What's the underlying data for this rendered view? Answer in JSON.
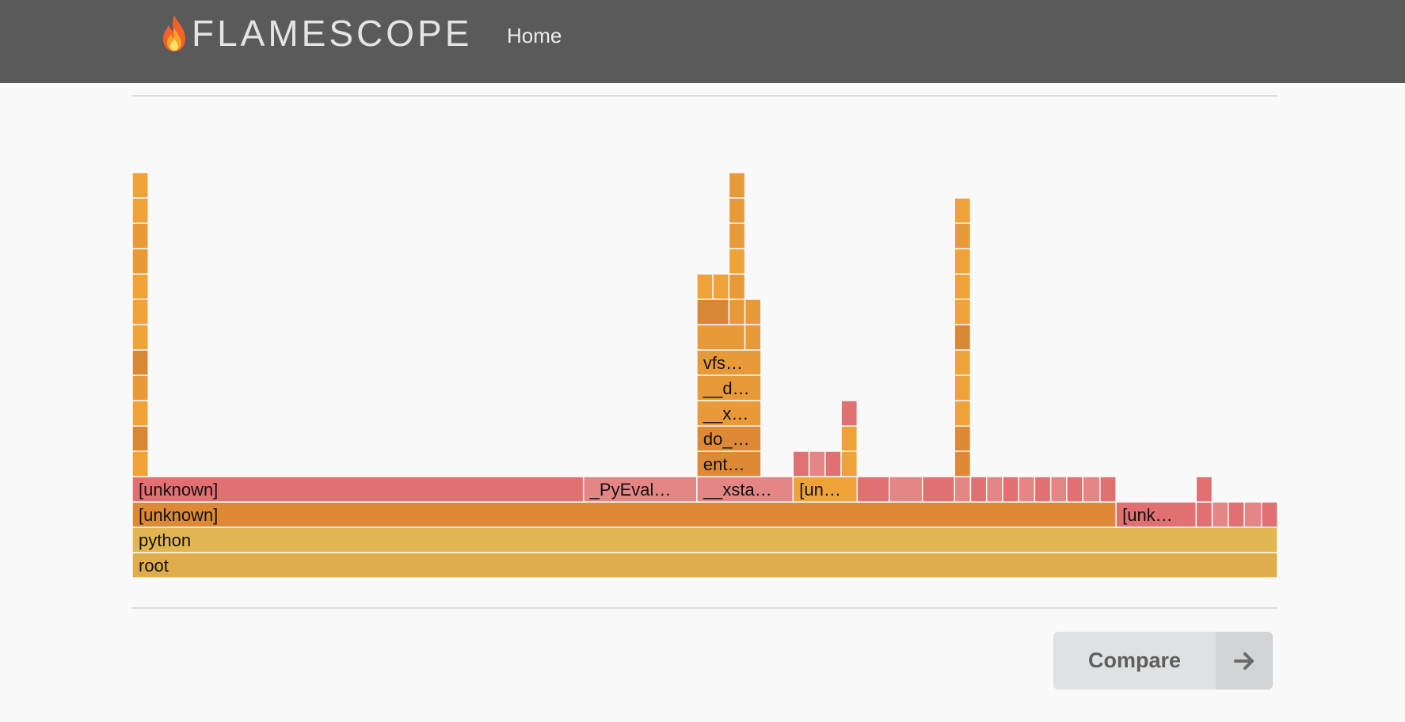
{
  "header": {
    "brand": "FLAMESCOPE",
    "brand_icon": "flame-icon",
    "nav_home": "Home"
  },
  "flamegraph": {
    "colors": {
      "red": "#e17072",
      "pink": "#e58686",
      "orange": "#dd8935",
      "orange_light": "#e99a38",
      "amber": "#efa238",
      "yellow": "#e2b652",
      "yellow_dark": "#e1ad4c",
      "brown": "#d88735"
    },
    "frames": [
      {
        "level": 0,
        "start": 0.0,
        "end": 1.0,
        "label": "root",
        "color": "yellow_dark"
      },
      {
        "level": 1,
        "start": 0.0,
        "end": 1.0,
        "label": "python",
        "color": "yellow"
      },
      {
        "level": 2,
        "start": 0.0,
        "end": 0.859,
        "label": "[unknown]",
        "color": "orange"
      },
      {
        "level": 2,
        "start": 0.859,
        "end": 0.929,
        "label": "[unk…",
        "color": "red"
      },
      {
        "level": 2,
        "start": 0.929,
        "end": 0.943,
        "label": "",
        "color": "red"
      },
      {
        "level": 2,
        "start": 0.943,
        "end": 0.957,
        "label": "",
        "color": "pink"
      },
      {
        "level": 2,
        "start": 0.957,
        "end": 0.971,
        "label": "",
        "color": "red"
      },
      {
        "level": 2,
        "start": 0.971,
        "end": 0.986,
        "label": "",
        "color": "pink"
      },
      {
        "level": 2,
        "start": 0.986,
        "end": 1.0,
        "label": "",
        "color": "red"
      },
      {
        "level": 3,
        "start": 0.0,
        "end": 0.394,
        "label": "[unknown]",
        "color": "red"
      },
      {
        "level": 3,
        "start": 0.394,
        "end": 0.493,
        "label": "_PyEval…",
        "color": "pink"
      },
      {
        "level": 3,
        "start": 0.493,
        "end": 0.577,
        "label": "__xsta…",
        "color": "pink"
      },
      {
        "level": 3,
        "start": 0.577,
        "end": 0.633,
        "label": "[un…",
        "color": "amber"
      },
      {
        "level": 3,
        "start": 0.633,
        "end": 0.661,
        "label": "",
        "color": "red"
      },
      {
        "level": 3,
        "start": 0.661,
        "end": 0.69,
        "label": "",
        "color": "pink"
      },
      {
        "level": 3,
        "start": 0.69,
        "end": 0.718,
        "label": "",
        "color": "red"
      },
      {
        "level": 3,
        "start": 0.718,
        "end": 0.732,
        "label": "",
        "color": "pink"
      },
      {
        "level": 3,
        "start": 0.732,
        "end": 0.746,
        "label": "",
        "color": "red"
      },
      {
        "level": 3,
        "start": 0.746,
        "end": 0.76,
        "label": "",
        "color": "pink"
      },
      {
        "level": 3,
        "start": 0.76,
        "end": 0.774,
        "label": "",
        "color": "red"
      },
      {
        "level": 3,
        "start": 0.774,
        "end": 0.788,
        "label": "",
        "color": "pink"
      },
      {
        "level": 3,
        "start": 0.788,
        "end": 0.802,
        "label": "",
        "color": "red"
      },
      {
        "level": 3,
        "start": 0.802,
        "end": 0.816,
        "label": "",
        "color": "pink"
      },
      {
        "level": 3,
        "start": 0.816,
        "end": 0.83,
        "label": "",
        "color": "red"
      },
      {
        "level": 3,
        "start": 0.83,
        "end": 0.845,
        "label": "",
        "color": "pink"
      },
      {
        "level": 3,
        "start": 0.845,
        "end": 0.859,
        "label": "",
        "color": "red"
      },
      {
        "level": 3,
        "start": 0.929,
        "end": 0.943,
        "label": "",
        "color": "red"
      },
      {
        "level": 4,
        "start": 0.0,
        "end": 0.014,
        "label": "",
        "color": "amber"
      },
      {
        "level": 4,
        "start": 0.493,
        "end": 0.549,
        "label": "ent…",
        "color": "orange"
      },
      {
        "level": 4,
        "start": 0.577,
        "end": 0.591,
        "label": "",
        "color": "red"
      },
      {
        "level": 4,
        "start": 0.591,
        "end": 0.605,
        "label": "",
        "color": "pink"
      },
      {
        "level": 4,
        "start": 0.605,
        "end": 0.619,
        "label": "",
        "color": "red"
      },
      {
        "level": 4,
        "start": 0.619,
        "end": 0.633,
        "label": "",
        "color": "amber"
      },
      {
        "level": 4,
        "start": 0.718,
        "end": 0.732,
        "label": "",
        "color": "orange"
      },
      {
        "level": 5,
        "start": 0.0,
        "end": 0.014,
        "label": "",
        "color": "brown"
      },
      {
        "level": 5,
        "start": 0.493,
        "end": 0.549,
        "label": "do_…",
        "color": "orange"
      },
      {
        "level": 5,
        "start": 0.619,
        "end": 0.633,
        "label": "",
        "color": "amber"
      },
      {
        "level": 5,
        "start": 0.718,
        "end": 0.732,
        "label": "",
        "color": "orange"
      },
      {
        "level": 6,
        "start": 0.0,
        "end": 0.014,
        "label": "",
        "color": "amber"
      },
      {
        "level": 6,
        "start": 0.493,
        "end": 0.549,
        "label": "__x…",
        "color": "orange_light"
      },
      {
        "level": 6,
        "start": 0.619,
        "end": 0.633,
        "label": "",
        "color": "red"
      },
      {
        "level": 6,
        "start": 0.718,
        "end": 0.732,
        "label": "",
        "color": "amber"
      },
      {
        "level": 7,
        "start": 0.0,
        "end": 0.014,
        "label": "",
        "color": "orange_light"
      },
      {
        "level": 7,
        "start": 0.493,
        "end": 0.549,
        "label": "__d…",
        "color": "orange_light"
      },
      {
        "level": 7,
        "start": 0.718,
        "end": 0.732,
        "label": "",
        "color": "amber"
      },
      {
        "level": 8,
        "start": 0.0,
        "end": 0.014,
        "label": "",
        "color": "brown"
      },
      {
        "level": 8,
        "start": 0.493,
        "end": 0.549,
        "label": "vfs…",
        "color": "orange_light"
      },
      {
        "level": 8,
        "start": 0.718,
        "end": 0.732,
        "label": "",
        "color": "amber"
      },
      {
        "level": 9,
        "start": 0.0,
        "end": 0.014,
        "label": "",
        "color": "amber"
      },
      {
        "level": 9,
        "start": 0.493,
        "end": 0.535,
        "label": "",
        "color": "orange_light"
      },
      {
        "level": 9,
        "start": 0.535,
        "end": 0.549,
        "label": "",
        "color": "orange_light"
      },
      {
        "level": 9,
        "start": 0.718,
        "end": 0.732,
        "label": "",
        "color": "brown"
      },
      {
        "level": 10,
        "start": 0.0,
        "end": 0.014,
        "label": "",
        "color": "amber"
      },
      {
        "level": 10,
        "start": 0.493,
        "end": 0.521,
        "label": "",
        "color": "brown"
      },
      {
        "level": 10,
        "start": 0.521,
        "end": 0.535,
        "label": "",
        "color": "orange_light"
      },
      {
        "level": 10,
        "start": 0.535,
        "end": 0.549,
        "label": "",
        "color": "orange_light"
      },
      {
        "level": 10,
        "start": 0.718,
        "end": 0.732,
        "label": "",
        "color": "amber"
      },
      {
        "level": 11,
        "start": 0.0,
        "end": 0.014,
        "label": "",
        "color": "amber"
      },
      {
        "level": 11,
        "start": 0.493,
        "end": 0.507,
        "label": "",
        "color": "amber"
      },
      {
        "level": 11,
        "start": 0.507,
        "end": 0.521,
        "label": "",
        "color": "amber"
      },
      {
        "level": 11,
        "start": 0.521,
        "end": 0.535,
        "label": "",
        "color": "orange_light"
      },
      {
        "level": 11,
        "start": 0.718,
        "end": 0.732,
        "label": "",
        "color": "amber"
      },
      {
        "level": 12,
        "start": 0.0,
        "end": 0.014,
        "label": "",
        "color": "orange_light"
      },
      {
        "level": 12,
        "start": 0.521,
        "end": 0.535,
        "label": "",
        "color": "amber"
      },
      {
        "level": 12,
        "start": 0.718,
        "end": 0.732,
        "label": "",
        "color": "amber"
      },
      {
        "level": 13,
        "start": 0.0,
        "end": 0.014,
        "label": "",
        "color": "orange_light"
      },
      {
        "level": 13,
        "start": 0.521,
        "end": 0.535,
        "label": "",
        "color": "orange_light"
      },
      {
        "level": 13,
        "start": 0.718,
        "end": 0.732,
        "label": "",
        "color": "orange_light"
      },
      {
        "level": 14,
        "start": 0.0,
        "end": 0.014,
        "label": "",
        "color": "amber"
      },
      {
        "level": 14,
        "start": 0.521,
        "end": 0.535,
        "label": "",
        "color": "orange_light"
      },
      {
        "level": 14,
        "start": 0.718,
        "end": 0.732,
        "label": "",
        "color": "amber"
      },
      {
        "level": 15,
        "start": 0.0,
        "end": 0.014,
        "label": "",
        "color": "amber"
      },
      {
        "level": 15,
        "start": 0.521,
        "end": 0.535,
        "label": "",
        "color": "orange_light"
      }
    ]
  },
  "footer": {
    "compare_label": "Compare",
    "compare_icon": "arrow-right-icon"
  }
}
